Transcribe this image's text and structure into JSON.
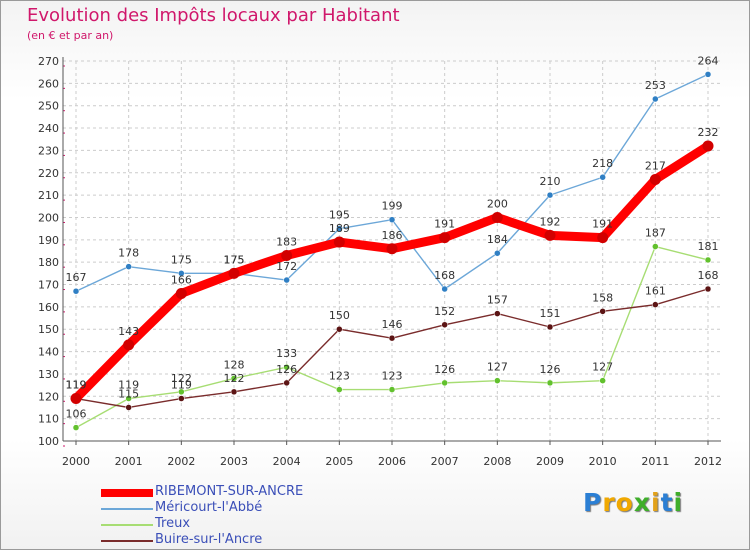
{
  "header": {
    "title": "Evolution des Impôts locaux par Habitant",
    "subtitle": "(en € et par an)"
  },
  "colors": {
    "title": "#d0176b",
    "frame": "#9a9a9a",
    "grid": "#cccccc",
    "axis_ticks": "#d0176b"
  },
  "chart_data": {
    "type": "line",
    "title": "Evolution des Impôts locaux par Habitant",
    "subtitle": "(en € et par an)",
    "xlabel": "",
    "ylabel": "",
    "categories": [
      "2000",
      "2001",
      "2002",
      "2003",
      "2004",
      "2005",
      "2006",
      "2007",
      "2008",
      "2009",
      "2010",
      "2011",
      "2012"
    ],
    "ylim": [
      100,
      270
    ],
    "yticks": [
      100,
      110,
      120,
      130,
      140,
      150,
      160,
      170,
      180,
      190,
      200,
      210,
      220,
      230,
      240,
      250,
      260,
      270
    ],
    "grid": true,
    "legend_position": "bottom-left",
    "series": [
      {
        "name": "RIBEMONT-SUR-ANCRE",
        "color": "#ff0000",
        "marker": "#d20000",
        "width": "thick",
        "values": [
          119,
          143,
          166,
          175,
          183,
          189,
          186,
          191,
          200,
          192,
          191,
          217,
          232
        ],
        "labels": [
          "119",
          "143",
          "166",
          "175",
          "183",
          "189",
          "186",
          "191",
          "200",
          "192",
          "191",
          "217",
          "232"
        ]
      },
      {
        "name": "Méricourt-l'Abbé",
        "color": "#6ca7d8",
        "marker": "#2f7fc4",
        "width": "thin",
        "values": [
          167,
          178,
          175,
          175,
          172,
          195,
          199,
          168,
          184,
          210,
          218,
          253,
          264
        ],
        "labels": [
          "167",
          "178",
          "175",
          "175",
          "172",
          "195",
          "199",
          "168",
          "184",
          "210",
          "218",
          "253",
          "264"
        ]
      },
      {
        "name": "Treux",
        "color": "#a7dd73",
        "marker": "#62c12d",
        "width": "thin",
        "values": [
          106,
          119,
          122,
          128,
          133,
          123,
          123,
          126,
          127,
          126,
          127,
          187,
          181
        ],
        "labels": [
          "106",
          "119",
          "122",
          "128",
          "133",
          "123",
          "123",
          "126",
          "127",
          "126",
          "127",
          "187",
          "181"
        ]
      },
      {
        "name": "Buire-sur-l'Ancre",
        "color": "#7a2c2c",
        "marker": "#5c1414",
        "width": "thin",
        "values": [
          119,
          115,
          119,
          122,
          126,
          150,
          146,
          152,
          157,
          151,
          158,
          161,
          168
        ],
        "labels": [
          "119",
          "115",
          "119",
          "122",
          "126",
          "150",
          "146",
          "152",
          "157",
          "151",
          "158",
          "161",
          "168"
        ]
      }
    ]
  },
  "brand": {
    "letters": [
      "P",
      "r",
      "o",
      "x",
      "i",
      "t",
      "i"
    ],
    "letter_colors": [
      "#2b7fd4",
      "#f0a800",
      "#f0a800",
      "#3fae2a",
      "#e2a21a",
      "#2b7fd4",
      "#3fae2a"
    ]
  }
}
